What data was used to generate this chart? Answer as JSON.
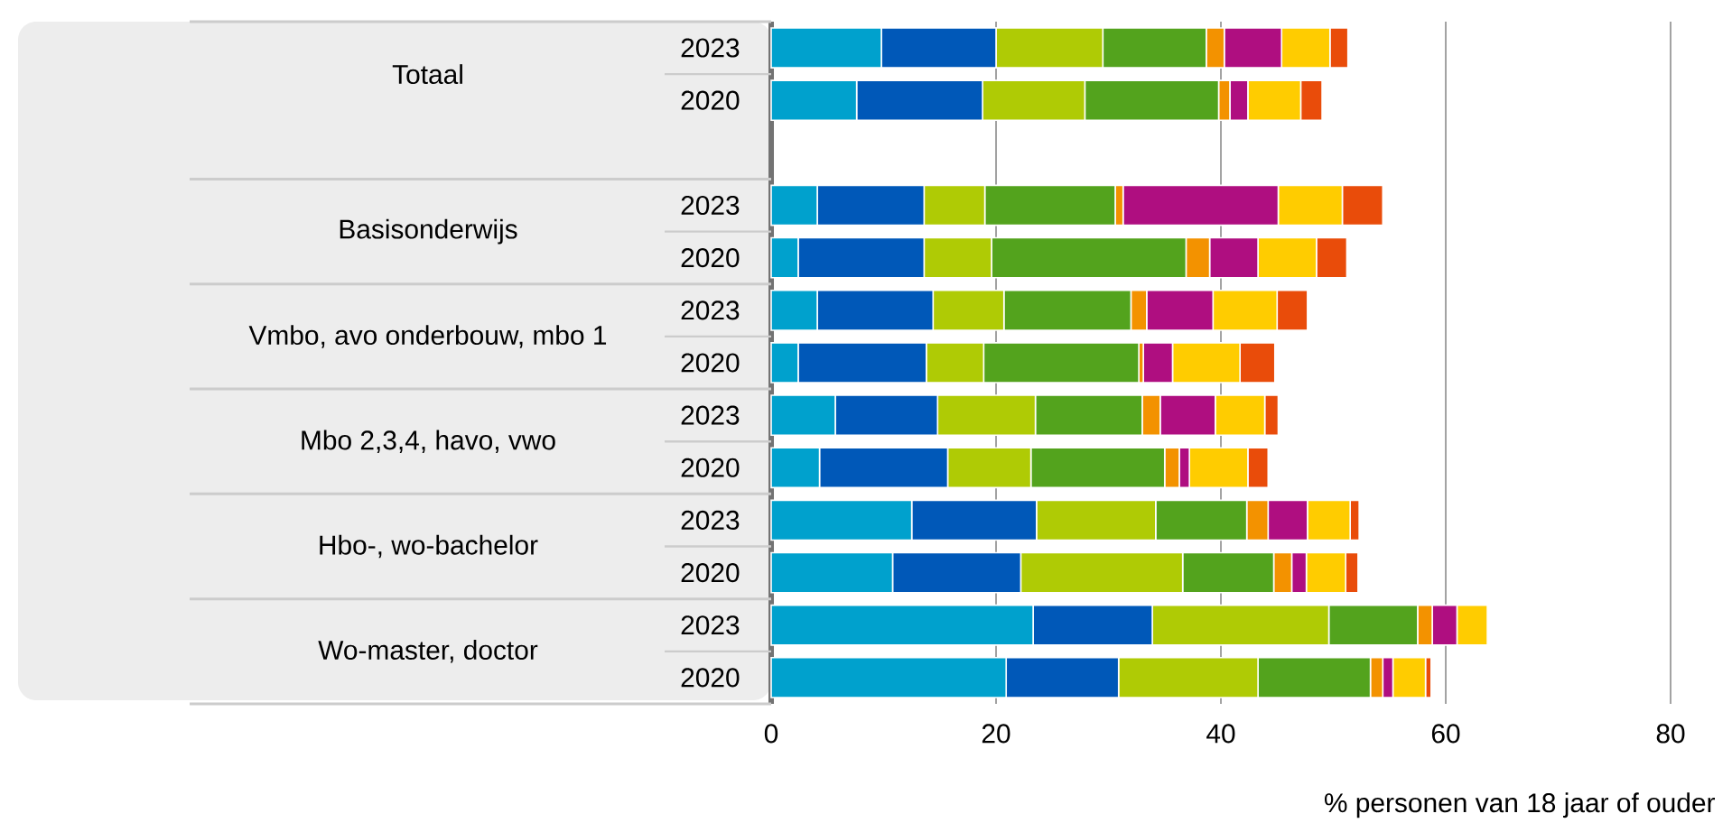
{
  "chart_data": {
    "type": "bar",
    "orientation": "horizontal",
    "stacked": true,
    "categories": [
      "2023",
      "2020",
      null,
      "2023",
      "2020",
      "2023",
      "2020",
      "2023",
      "2020",
      "2023",
      "2020",
      "2023",
      "2020"
    ],
    "annotations": [
      "Totaal",
      "Basisonderwijs",
      "Vmbo, avo onderbouw, mbo 1",
      "Mbo 2,3,4, havo, vwo",
      "Hbo-, wo-bachelor",
      "Wo-master, doctor"
    ],
    "xlabel": "% personen van 18 jaar of ouder",
    "xlim": [
      0,
      80
    ],
    "xticks": [
      0,
      20,
      40,
      60,
      80
    ],
    "grid": "x",
    "series": [
      {
        "color": "#00a1cd",
        "values": [
          9.8,
          7.6,
          null,
          4.1,
          2.4,
          4.1,
          2.4,
          5.7,
          4.3,
          12.5,
          10.8,
          23.3,
          20.9
        ]
      },
      {
        "color": "#0058b8",
        "values": [
          10.2,
          11.2,
          null,
          9.5,
          11.2,
          10.3,
          11.4,
          9.1,
          11.4,
          11.1,
          11.4,
          10.6,
          10.0
        ]
      },
      {
        "color": "#afcb05",
        "values": [
          9.5,
          9.1,
          null,
          5.4,
          6.0,
          6.3,
          5.1,
          8.7,
          7.4,
          10.6,
          14.4,
          15.7,
          12.4
        ]
      },
      {
        "color": "#53a31d",
        "values": [
          9.2,
          11.9,
          null,
          11.6,
          17.3,
          11.3,
          13.8,
          9.5,
          11.9,
          8.1,
          8.1,
          7.9,
          10.0
        ]
      },
      {
        "color": "#f39200",
        "values": [
          1.6,
          1.0,
          null,
          0.7,
          2.1,
          1.4,
          0.4,
          1.6,
          1.3,
          1.9,
          1.6,
          1.3,
          1.1
        ]
      },
      {
        "color": "#af0e80",
        "values": [
          5.1,
          1.6,
          null,
          13.8,
          4.3,
          5.9,
          2.6,
          4.9,
          0.9,
          3.5,
          1.3,
          2.2,
          0.9
        ]
      },
      {
        "color": "#ffcc00",
        "values": [
          4.3,
          4.7,
          null,
          5.7,
          5.2,
          5.7,
          6.0,
          4.4,
          5.2,
          3.8,
          3.5,
          2.7,
          2.9
        ]
      },
      {
        "color": "#e94c0a",
        "values": [
          1.6,
          1.9,
          null,
          3.6,
          2.7,
          2.7,
          3.1,
          1.2,
          1.8,
          0.8,
          1.1,
          null,
          0.5
        ]
      }
    ]
  }
}
